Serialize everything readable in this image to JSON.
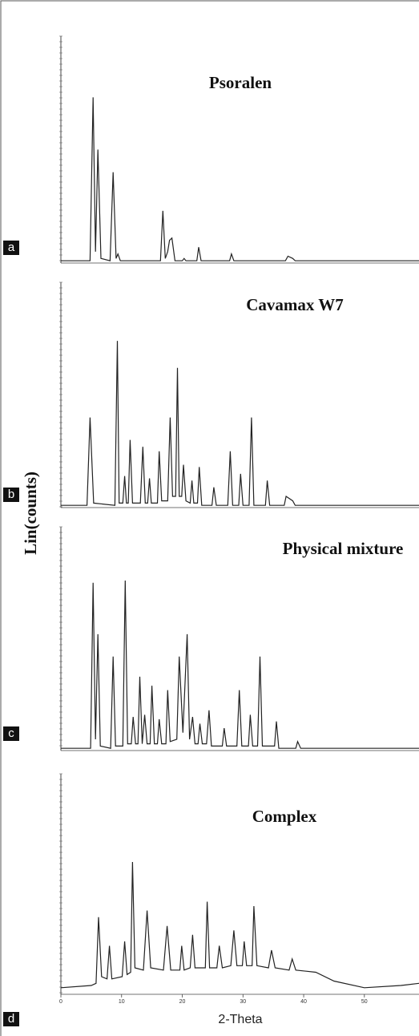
{
  "chart_data": [
    {
      "type": "line",
      "title": "Psoralen",
      "panel_label": "a",
      "xlim": [
        0,
        59
      ],
      "ylim": [
        0,
        100
      ],
      "color": "#222222",
      "x": [
        0,
        4.8,
        5.3,
        5.7,
        6.1,
        6.6,
        8.1,
        8.6,
        9.1,
        9.4,
        9.8,
        16.4,
        16.8,
        17.2,
        17.6,
        17.9,
        18.3,
        18.8,
        20.0,
        20.3,
        20.6,
        22.4,
        22.7,
        23.1,
        27.8,
        28.1,
        28.5,
        37.0,
        37.4,
        38.2,
        38.6,
        59
      ],
      "values": [
        1,
        1,
        73,
        5,
        50,
        2,
        1,
        40,
        2,
        4,
        1,
        1,
        23,
        2,
        5,
        10,
        11,
        1,
        1,
        2,
        1,
        1,
        7,
        1,
        1,
        4,
        1,
        1,
        3,
        2,
        1,
        1
      ]
    },
    {
      "type": "line",
      "title": "Cavamax W7",
      "panel_label": "b",
      "xlim": [
        0,
        59
      ],
      "ylim": [
        0,
        100
      ],
      "color": "#222222",
      "x": [
        0,
        4.3,
        4.8,
        5.4,
        8.9,
        9.3,
        9.6,
        10.2,
        10.5,
        10.8,
        11.1,
        11.4,
        11.8,
        13.1,
        13.5,
        13.9,
        14.3,
        14.6,
        14.9,
        15.9,
        16.2,
        16.6,
        17.6,
        18.0,
        18.4,
        18.9,
        19.2,
        19.5,
        19.9,
        20.2,
        20.6,
        21.3,
        21.6,
        21.9,
        22.5,
        22.8,
        23.2,
        24.9,
        25.2,
        25.6,
        27.5,
        27.9,
        28.3,
        29.3,
        29.6,
        30.0,
        31.0,
        31.4,
        31.8,
        33.7,
        34.0,
        34.4,
        36.8,
        37.1,
        38.2,
        38.6,
        59
      ],
      "values": [
        1,
        1,
        40,
        2,
        1,
        74,
        2,
        2,
        14,
        2,
        2,
        30,
        2,
        2,
        27,
        2,
        2,
        13,
        2,
        2,
        25,
        3,
        3,
        40,
        5,
        5,
        62,
        5,
        5,
        19,
        3,
        2,
        12,
        2,
        2,
        18,
        1,
        1,
        9,
        1,
        1,
        25,
        1,
        1,
        15,
        1,
        1,
        40,
        1,
        1,
        12,
        1,
        1,
        5,
        3,
        1,
        1
      ]
    },
    {
      "type": "line",
      "title": "Physical mixture",
      "panel_label": "c",
      "ylabel": "Lin(counts)",
      "xlim": [
        0,
        59
      ],
      "ylim": [
        0,
        100
      ],
      "color": "#222222",
      "x": [
        0,
        4.9,
        5.3,
        5.7,
        6.1,
        6.5,
        8.2,
        8.6,
        9.0,
        10.2,
        10.6,
        11.0,
        11.6,
        11.9,
        12.3,
        12.7,
        13.0,
        13.4,
        13.8,
        14.2,
        14.7,
        15.0,
        15.4,
        15.9,
        16.2,
        16.6,
        17.3,
        17.6,
        18.0,
        19.1,
        19.5,
        20.1,
        20.8,
        21.2,
        21.7,
        22.1,
        22.6,
        22.9,
        23.3,
        24.0,
        24.4,
        24.8,
        26.6,
        26.9,
        27.3,
        29.0,
        29.4,
        29.8,
        30.9,
        31.2,
        31.6,
        32.4,
        32.8,
        33.2,
        35.2,
        35.5,
        35.9,
        38.7,
        39.0,
        39.5,
        59
      ],
      "values": [
        1,
        1,
        75,
        5,
        52,
        2,
        1,
        42,
        2,
        2,
        76,
        3,
        3,
        15,
        3,
        3,
        33,
        3,
        16,
        3,
        3,
        29,
        3,
        3,
        14,
        3,
        3,
        27,
        4,
        5,
        42,
        8,
        52,
        5,
        15,
        3,
        3,
        12,
        3,
        3,
        18,
        2,
        2,
        10,
        2,
        2,
        27,
        2,
        2,
        16,
        2,
        2,
        42,
        2,
        2,
        13,
        1,
        1,
        4,
        1,
        1
      ]
    },
    {
      "type": "line",
      "title": "Complex",
      "panel_label": "d",
      "xlabel": "2-Theta",
      "xlim": [
        0,
        59
      ],
      "ylim": [
        0,
        100
      ],
      "xticks": [
        0,
        10,
        20,
        30,
        40,
        50
      ],
      "color": "#222222",
      "x": [
        0,
        5,
        5.8,
        6.2,
        6.7,
        7.6,
        8.0,
        8.4,
        10.1,
        10.5,
        10.9,
        11.5,
        11.8,
        12.2,
        13.6,
        14.2,
        14.8,
        16.9,
        17.5,
        18.1,
        19.6,
        19.9,
        20.3,
        21.3,
        21.7,
        22.1,
        23.8,
        24.1,
        24.5,
        25.7,
        26.1,
        26.6,
        28.0,
        28.5,
        29.0,
        29.9,
        30.2,
        30.6,
        31.5,
        31.8,
        32.3,
        34.2,
        34.7,
        35.3,
        37.6,
        38.1,
        38.7,
        42,
        45,
        50,
        56,
        59
      ],
      "values": [
        3,
        4,
        5,
        35,
        8,
        7,
        22,
        7,
        8,
        24,
        9,
        10,
        60,
        12,
        11,
        38,
        12,
        11,
        31,
        11,
        11,
        22,
        11,
        12,
        27,
        12,
        12,
        42,
        12,
        12,
        22,
        12,
        13,
        29,
        13,
        13,
        24,
        13,
        13,
        40,
        13,
        12,
        20,
        12,
        11,
        16,
        11,
        10,
        6,
        3,
        4,
        5
      ]
    }
  ]
}
